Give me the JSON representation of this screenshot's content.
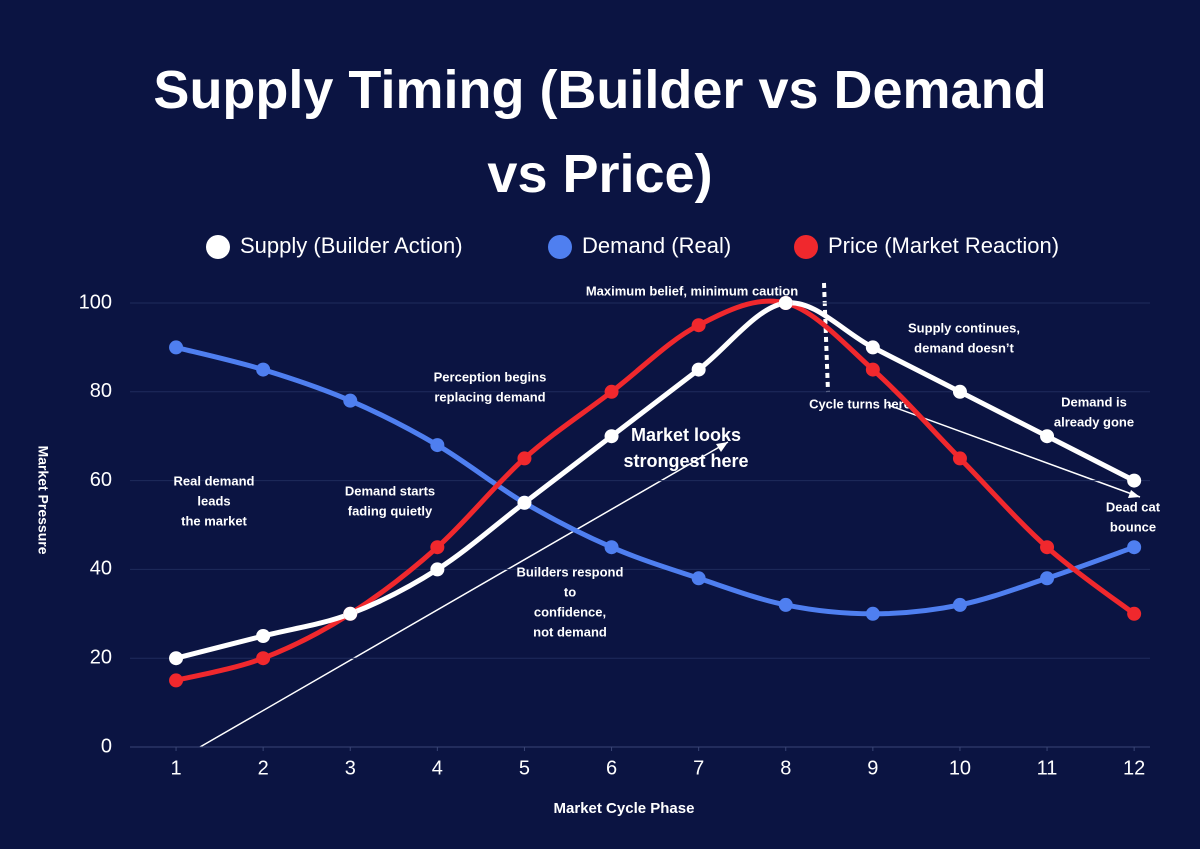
{
  "chart_data": {
    "type": "line",
    "title": "Supply Timing (Builder vs Demand vs Price)",
    "x_label": "Market Cycle Phase",
    "y_label": "Market Pressure",
    "x": [
      1,
      2,
      3,
      4,
      5,
      6,
      7,
      8,
      9,
      10,
      11,
      12
    ],
    "xlim": [
      0.5,
      12.5
    ],
    "xticks": [
      1,
      2,
      3,
      4,
      5,
      6,
      7,
      8,
      9,
      10,
      11,
      12
    ],
    "ylim": [
      0,
      100
    ],
    "yticks": [
      0,
      20,
      40,
      60,
      80,
      100
    ],
    "grid": true,
    "smooth": true,
    "legend": "top",
    "series": [
      {
        "name": "Supply (Builder Action)",
        "color": "#ffffff",
        "values": [
          20,
          25,
          30,
          40,
          55,
          70,
          85,
          100,
          90,
          80,
          70,
          60
        ]
      },
      {
        "name": "Demand (Real)",
        "color": "#4f7ff0",
        "values": [
          90,
          85,
          78,
          68,
          55,
          45,
          38,
          32,
          30,
          32,
          38,
          45
        ]
      },
      {
        "name": "Price (Market Reaction)",
        "color": "#f0282d",
        "values": [
          15,
          20,
          30,
          45,
          65,
          80,
          95,
          100,
          85,
          65,
          45,
          30
        ]
      }
    ],
    "annotations": [
      {
        "lines": [
          "Real demand",
          "leads",
          "the market"
        ]
      },
      {
        "lines": [
          "Demand starts",
          "fading quietly"
        ]
      },
      {
        "lines": [
          "Perception begins",
          "replacing demand"
        ]
      },
      {
        "lines": [
          "Maximum belief, minimum caution"
        ]
      },
      {
        "lines": [
          "Cycle turns here"
        ]
      },
      {
        "lines": [
          "Supply continues,",
          "demand doesn’t"
        ]
      },
      {
        "lines": [
          "Demand is",
          "already gone"
        ]
      },
      {
        "lines": [
          "Dead cat",
          "bounce"
        ]
      },
      {
        "lines": [
          "Builders respond",
          "to",
          "confidence,",
          "not demand"
        ]
      },
      {
        "lines": [
          "Market looks",
          "strongest here"
        ]
      }
    ]
  }
}
